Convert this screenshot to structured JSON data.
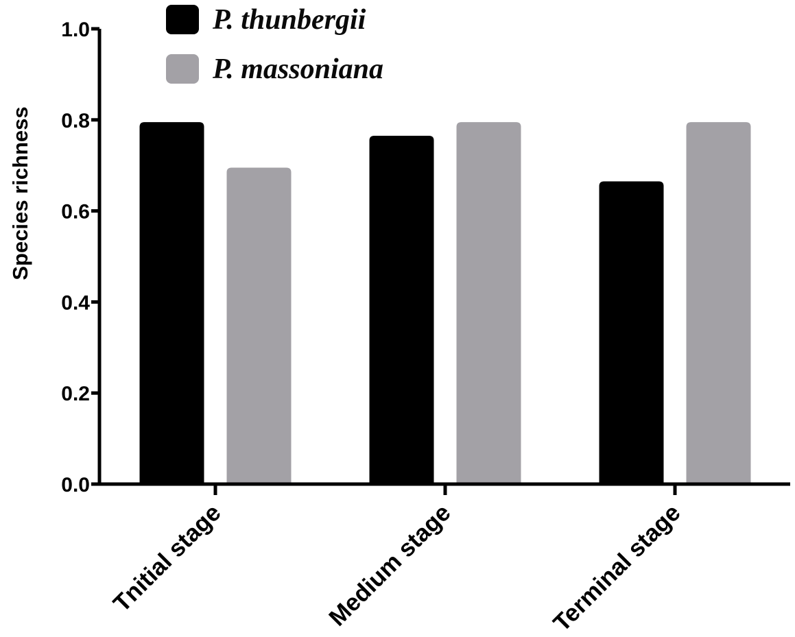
{
  "chart_data": {
    "type": "bar",
    "title": "",
    "xlabel": "",
    "ylabel": "Species richness",
    "categories": [
      "Tnitial stage",
      "Medium stage",
      "Terminal stage"
    ],
    "series": [
      {
        "name": "P. thunbergii",
        "color": "#000000",
        "values": [
          0.795,
          0.765,
          0.665
        ]
      },
      {
        "name": "P. massoniana",
        "color": "#a3a1a6",
        "values": [
          0.695,
          0.795,
          0.795
        ]
      }
    ],
    "y_axis": {
      "min": 0.0,
      "max": 1.0,
      "ticks": [
        0.0,
        0.2,
        0.4,
        0.6,
        0.8,
        1.0
      ],
      "tick_labels": [
        "0.0",
        "0.2",
        "0.4",
        "0.6",
        "0.8",
        "1.0"
      ]
    },
    "x_tick_rotation_deg": 45,
    "legend_position": "top-left",
    "grid": false,
    "axis_color": "#000000",
    "background": "#ffffff"
  }
}
